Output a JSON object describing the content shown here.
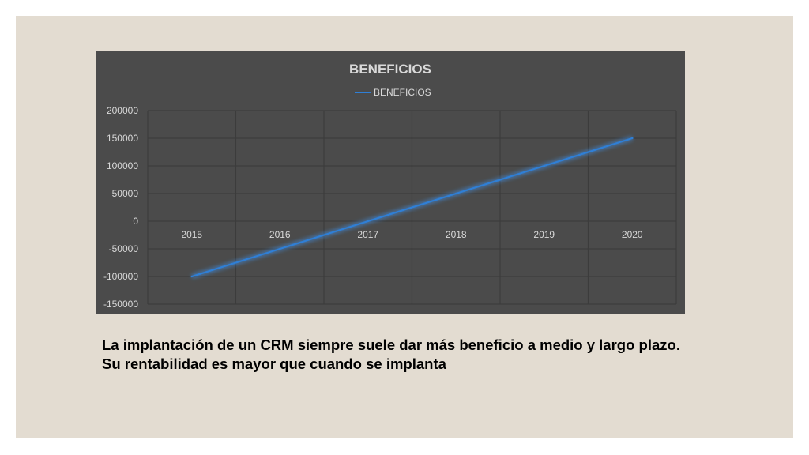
{
  "chart_data": {
    "type": "line",
    "title": "BENEFICIOS",
    "categories": [
      "2015",
      "2016",
      "2017",
      "2018",
      "2019",
      "2020"
    ],
    "series": [
      {
        "name": "BENEFICIOS",
        "values": [
          -100000,
          -50000,
          0,
          50000,
          100000,
          150000
        ]
      }
    ],
    "y_ticks": [
      "200000",
      "150000",
      "100000",
      "50000",
      "0",
      "-50000",
      "-100000",
      "-150000"
    ],
    "ylim": [
      -150000,
      200000
    ],
    "grid": true,
    "legend": "top-center",
    "colors": {
      "line": "#2f7fd6",
      "background": "#4b4b4b",
      "grid": "#3c3c3c",
      "text": "#d9d9d9"
    }
  },
  "caption": "La implantación de un CRM siempre suele dar más beneficio a medio y largo plazo. Su rentabilidad es mayor que cuando se implanta"
}
